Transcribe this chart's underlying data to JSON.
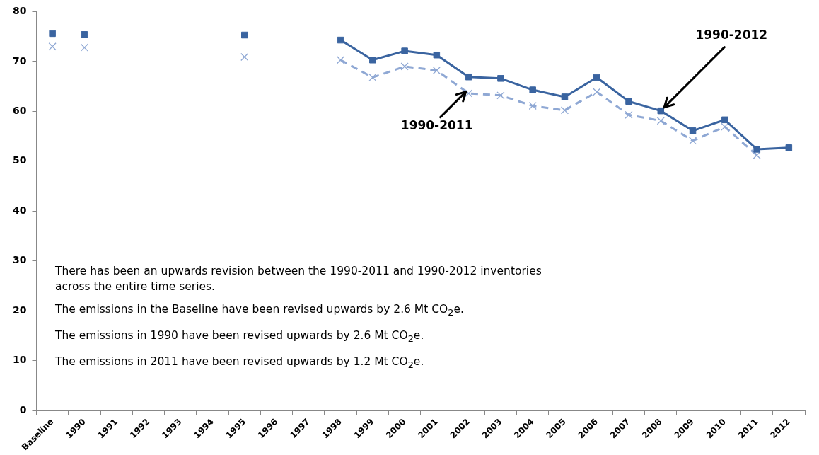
{
  "chart_data": {
    "type": "line",
    "categories": [
      "Baseline",
      "1990",
      "1991",
      "1992",
      "1993",
      "1994",
      "1995",
      "1996",
      "1997",
      "1998",
      "1999",
      "2000",
      "2001",
      "2002",
      "2003",
      "2004",
      "2005",
      "2006",
      "2007",
      "2008",
      "2009",
      "2010",
      "2011",
      "2012"
    ],
    "series": [
      {
        "type": "scatter",
        "color": "#3a64a0",
        "marker": "square",
        "values": [
          75.6,
          75.4,
          null,
          null,
          null,
          null,
          75.3,
          null,
          null,
          null,
          null,
          null,
          null,
          null,
          null,
          null,
          null,
          null,
          null,
          null,
          null,
          null,
          null,
          null
        ]
      },
      {
        "color": "#3a64a0",
        "marker": "square",
        "line_style": "solid",
        "values": [
          null,
          null,
          null,
          null,
          null,
          null,
          null,
          null,
          null,
          74.3,
          70.3,
          72.1,
          71.3,
          66.9,
          66.6,
          64.3,
          62.9,
          66.8,
          62.0,
          60.1,
          56.1,
          58.3,
          52.4,
          52.7
        ]
      },
      {
        "type": "scatter",
        "color": "#8fa8d4",
        "marker": "cross",
        "values": [
          73.0,
          72.8,
          null,
          null,
          null,
          null,
          70.9,
          null,
          null,
          null,
          null,
          null,
          null,
          null,
          null,
          null,
          null,
          null,
          null,
          null,
          null,
          null,
          null,
          null
        ]
      },
      {
        "color": "#8fa8d4",
        "marker": "cross",
        "line_style": "dashed",
        "values": [
          null,
          null,
          null,
          null,
          null,
          null,
          null,
          null,
          null,
          70.3,
          66.8,
          69.0,
          68.2,
          63.6,
          63.2,
          61.1,
          60.2,
          63.9,
          59.3,
          58.1,
          54.1,
          56.9,
          51.2,
          null
        ]
      }
    ],
    "ylim": [
      0,
      80
    ],
    "yticks": [
      0,
      10,
      20,
      30,
      40,
      50,
      60,
      70,
      80
    ],
    "grid": false,
    "legend": false,
    "annotations": [
      {
        "text": "1990-2011",
        "x": "2002",
        "y": 64.5
      },
      {
        "text": "1990-2012",
        "x": "2008",
        "y": 60.1
      },
      "There has been an upwards revision between the 1990-2011 and 1990-2012 inventories across the entire time series.",
      "The emissions in the Baseline have been revised upwards by 2.6 Mt CO$_{2}$e.",
      "The emissions in 1990 have been revised upwards by 2.6 Mt CO$_{2}$e.",
      "The emissions in 2011 have been revised upwards by 1.2 Mt CO$_{2}$e."
    ]
  }
}
